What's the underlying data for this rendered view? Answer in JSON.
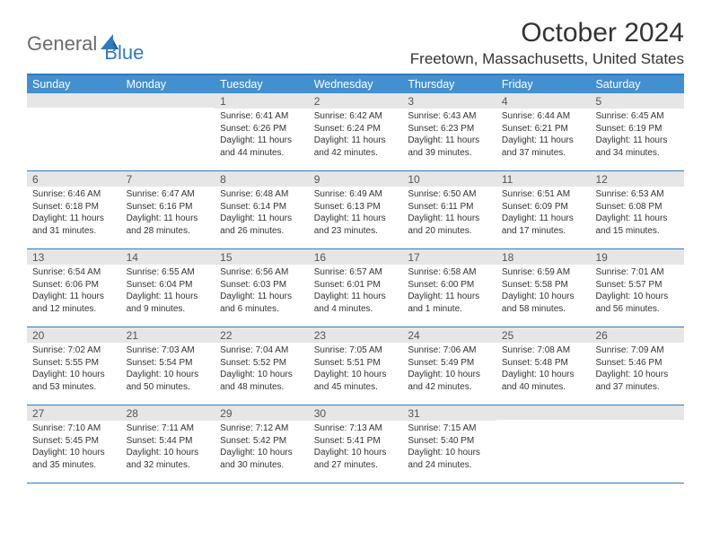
{
  "logo": {
    "general": "General",
    "blue": "Blue"
  },
  "title": "October 2024",
  "location": "Freetown, Massachusetts, United States",
  "colors": {
    "accent": "#2f7ac0",
    "header_bg": "#4390d0",
    "daynum_bg": "#e6e6e6",
    "text": "#333333",
    "logo_gray": "#6b6b6b"
  },
  "weekdays": [
    "Sunday",
    "Monday",
    "Tuesday",
    "Wednesday",
    "Thursday",
    "Friday",
    "Saturday"
  ],
  "weeks": [
    [
      {
        "day": "",
        "sr": "",
        "ss": "",
        "dl": ""
      },
      {
        "day": "",
        "sr": "",
        "ss": "",
        "dl": ""
      },
      {
        "day": "1",
        "sr": "Sunrise: 6:41 AM",
        "ss": "Sunset: 6:26 PM",
        "dl": "Daylight: 11 hours and 44 minutes."
      },
      {
        "day": "2",
        "sr": "Sunrise: 6:42 AM",
        "ss": "Sunset: 6:24 PM",
        "dl": "Daylight: 11 hours and 42 minutes."
      },
      {
        "day": "3",
        "sr": "Sunrise: 6:43 AM",
        "ss": "Sunset: 6:23 PM",
        "dl": "Daylight: 11 hours and 39 minutes."
      },
      {
        "day": "4",
        "sr": "Sunrise: 6:44 AM",
        "ss": "Sunset: 6:21 PM",
        "dl": "Daylight: 11 hours and 37 minutes."
      },
      {
        "day": "5",
        "sr": "Sunrise: 6:45 AM",
        "ss": "Sunset: 6:19 PM",
        "dl": "Daylight: 11 hours and 34 minutes."
      }
    ],
    [
      {
        "day": "6",
        "sr": "Sunrise: 6:46 AM",
        "ss": "Sunset: 6:18 PM",
        "dl": "Daylight: 11 hours and 31 minutes."
      },
      {
        "day": "7",
        "sr": "Sunrise: 6:47 AM",
        "ss": "Sunset: 6:16 PM",
        "dl": "Daylight: 11 hours and 28 minutes."
      },
      {
        "day": "8",
        "sr": "Sunrise: 6:48 AM",
        "ss": "Sunset: 6:14 PM",
        "dl": "Daylight: 11 hours and 26 minutes."
      },
      {
        "day": "9",
        "sr": "Sunrise: 6:49 AM",
        "ss": "Sunset: 6:13 PM",
        "dl": "Daylight: 11 hours and 23 minutes."
      },
      {
        "day": "10",
        "sr": "Sunrise: 6:50 AM",
        "ss": "Sunset: 6:11 PM",
        "dl": "Daylight: 11 hours and 20 minutes."
      },
      {
        "day": "11",
        "sr": "Sunrise: 6:51 AM",
        "ss": "Sunset: 6:09 PM",
        "dl": "Daylight: 11 hours and 17 minutes."
      },
      {
        "day": "12",
        "sr": "Sunrise: 6:53 AM",
        "ss": "Sunset: 6:08 PM",
        "dl": "Daylight: 11 hours and 15 minutes."
      }
    ],
    [
      {
        "day": "13",
        "sr": "Sunrise: 6:54 AM",
        "ss": "Sunset: 6:06 PM",
        "dl": "Daylight: 11 hours and 12 minutes."
      },
      {
        "day": "14",
        "sr": "Sunrise: 6:55 AM",
        "ss": "Sunset: 6:04 PM",
        "dl": "Daylight: 11 hours and 9 minutes."
      },
      {
        "day": "15",
        "sr": "Sunrise: 6:56 AM",
        "ss": "Sunset: 6:03 PM",
        "dl": "Daylight: 11 hours and 6 minutes."
      },
      {
        "day": "16",
        "sr": "Sunrise: 6:57 AM",
        "ss": "Sunset: 6:01 PM",
        "dl": "Daylight: 11 hours and 4 minutes."
      },
      {
        "day": "17",
        "sr": "Sunrise: 6:58 AM",
        "ss": "Sunset: 6:00 PM",
        "dl": "Daylight: 11 hours and 1 minute."
      },
      {
        "day": "18",
        "sr": "Sunrise: 6:59 AM",
        "ss": "Sunset: 5:58 PM",
        "dl": "Daylight: 10 hours and 58 minutes."
      },
      {
        "day": "19",
        "sr": "Sunrise: 7:01 AM",
        "ss": "Sunset: 5:57 PM",
        "dl": "Daylight: 10 hours and 56 minutes."
      }
    ],
    [
      {
        "day": "20",
        "sr": "Sunrise: 7:02 AM",
        "ss": "Sunset: 5:55 PM",
        "dl": "Daylight: 10 hours and 53 minutes."
      },
      {
        "day": "21",
        "sr": "Sunrise: 7:03 AM",
        "ss": "Sunset: 5:54 PM",
        "dl": "Daylight: 10 hours and 50 minutes."
      },
      {
        "day": "22",
        "sr": "Sunrise: 7:04 AM",
        "ss": "Sunset: 5:52 PM",
        "dl": "Daylight: 10 hours and 48 minutes."
      },
      {
        "day": "23",
        "sr": "Sunrise: 7:05 AM",
        "ss": "Sunset: 5:51 PM",
        "dl": "Daylight: 10 hours and 45 minutes."
      },
      {
        "day": "24",
        "sr": "Sunrise: 7:06 AM",
        "ss": "Sunset: 5:49 PM",
        "dl": "Daylight: 10 hours and 42 minutes."
      },
      {
        "day": "25",
        "sr": "Sunrise: 7:08 AM",
        "ss": "Sunset: 5:48 PM",
        "dl": "Daylight: 10 hours and 40 minutes."
      },
      {
        "day": "26",
        "sr": "Sunrise: 7:09 AM",
        "ss": "Sunset: 5:46 PM",
        "dl": "Daylight: 10 hours and 37 minutes."
      }
    ],
    [
      {
        "day": "27",
        "sr": "Sunrise: 7:10 AM",
        "ss": "Sunset: 5:45 PM",
        "dl": "Daylight: 10 hours and 35 minutes."
      },
      {
        "day": "28",
        "sr": "Sunrise: 7:11 AM",
        "ss": "Sunset: 5:44 PM",
        "dl": "Daylight: 10 hours and 32 minutes."
      },
      {
        "day": "29",
        "sr": "Sunrise: 7:12 AM",
        "ss": "Sunset: 5:42 PM",
        "dl": "Daylight: 10 hours and 30 minutes."
      },
      {
        "day": "30",
        "sr": "Sunrise: 7:13 AM",
        "ss": "Sunset: 5:41 PM",
        "dl": "Daylight: 10 hours and 27 minutes."
      },
      {
        "day": "31",
        "sr": "Sunrise: 7:15 AM",
        "ss": "Sunset: 5:40 PM",
        "dl": "Daylight: 10 hours and 24 minutes."
      },
      {
        "day": "",
        "sr": "",
        "ss": "",
        "dl": ""
      },
      {
        "day": "",
        "sr": "",
        "ss": "",
        "dl": ""
      }
    ]
  ]
}
